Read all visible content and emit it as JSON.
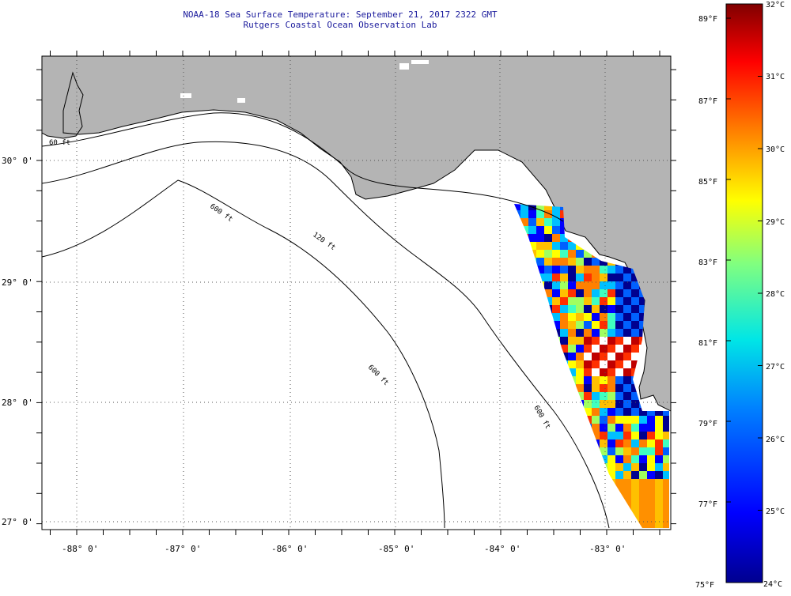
{
  "header": {
    "title": "NOAA-18 Sea Surface Temperature:  September 21, 2017 2322 GMT",
    "subtitle": "Rutgers Coastal Ocean Observation Lab"
  },
  "map": {
    "lat_labels": [
      "30° 0'",
      "29° 0'",
      "28° 0'",
      "27° 0'"
    ],
    "lon_labels": [
      "-88° 0'",
      "-87° 0'",
      "-86° 0'",
      "-85° 0'",
      "-84° 0'",
      "-83° 0'"
    ],
    "contours": [
      {
        "label": "60 ft"
      },
      {
        "label": "120 ft"
      },
      {
        "label": "600 ft"
      },
      {
        "label": "600 ft"
      },
      {
        "label": "600 ft"
      }
    ],
    "colors": {
      "land": "#b4b4b4",
      "ocean": "#ffffff",
      "grid": "#555555"
    }
  },
  "colorbar": {
    "fahrenheit": [
      "89°F",
      "87°F",
      "85°F",
      "83°F",
      "81°F",
      "79°F",
      "77°F",
      "75°F"
    ],
    "celsius": [
      "32°C",
      "31°C",
      "30°C",
      "29°C",
      "28°C",
      "27°C",
      "26°C",
      "25°C",
      "24°C"
    ],
    "range_c": [
      24,
      32
    ],
    "range_f": [
      75,
      89.6
    ]
  }
}
